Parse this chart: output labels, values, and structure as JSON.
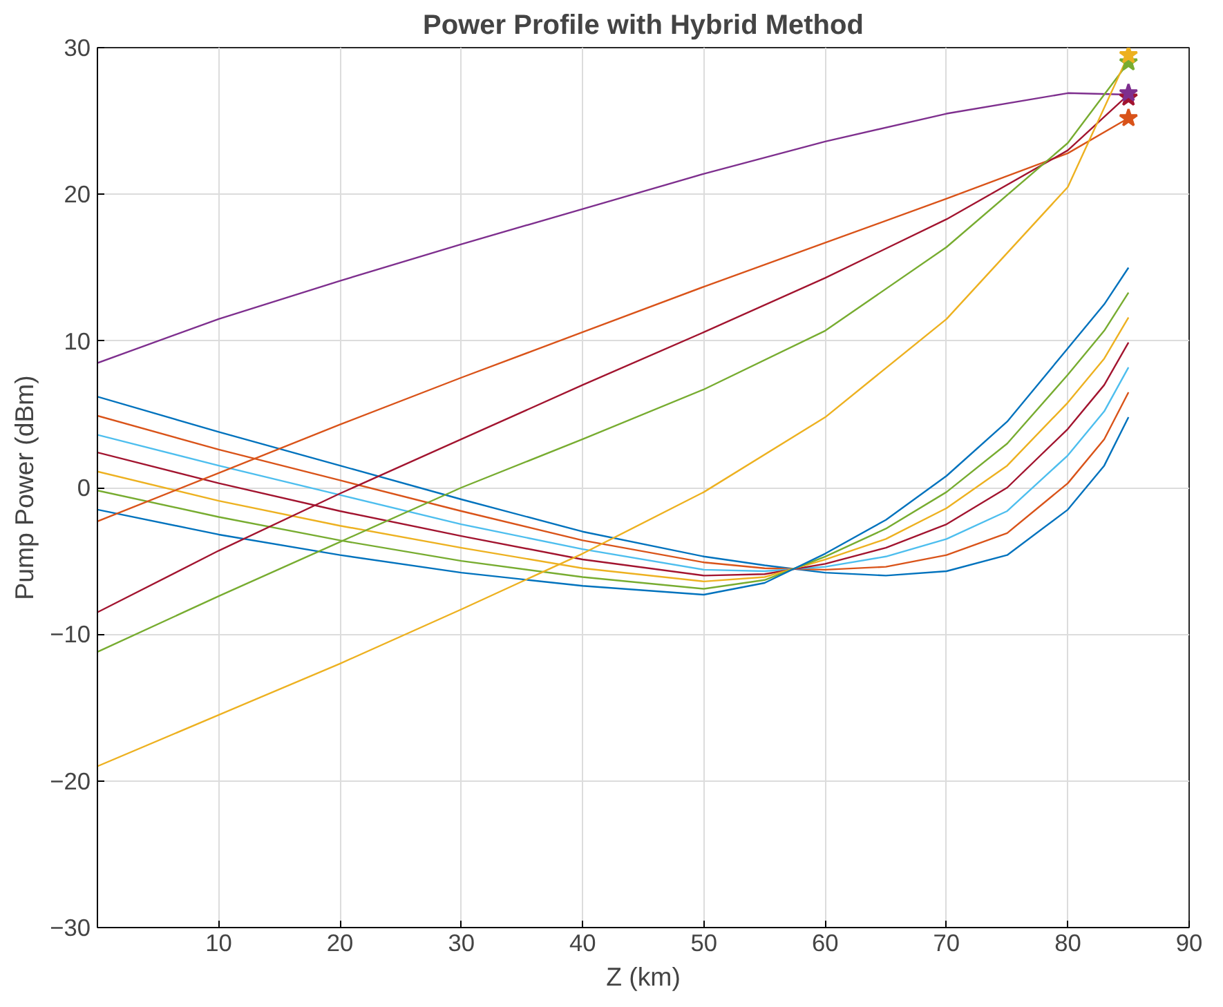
{
  "chart_data": {
    "type": "line",
    "title": "Power Profile with Hybrid Method",
    "xlabel": "Z (km)",
    "ylabel": "Pump Power (dBm)",
    "xlim": [
      0,
      90
    ],
    "xticks": [
      10,
      20,
      30,
      40,
      50,
      60,
      70,
      80,
      90
    ],
    "ylim": [
      -30,
      30
    ],
    "yticks": [
      -30,
      -20,
      -10,
      0,
      10,
      20,
      30
    ],
    "grid": true,
    "line_style": "solid",
    "x": [
      0,
      10,
      20,
      30,
      40,
      50,
      55,
      60,
      65,
      70,
      75,
      80,
      83,
      85
    ],
    "series": [
      {
        "color": "#0072bd",
        "values": [
          6.2,
          3.8,
          1.5,
          -0.8,
          -3,
          -4.7,
          -5.3,
          -5.8,
          -6,
          -5.7,
          -4.6,
          -1.5,
          1.5,
          4.8
        ]
      },
      {
        "color": "#d95319",
        "values": [
          4.9,
          2.6,
          0.5,
          -1.6,
          -3.6,
          -5.1,
          -5.5,
          -5.6,
          -5.4,
          -4.6,
          -3.1,
          0.3,
          3.3,
          6.5
        ]
      },
      {
        "color": "#4dbeee",
        "values": [
          3.6,
          1.5,
          -0.5,
          -2.5,
          -4.2,
          -5.6,
          -5.7,
          -5.4,
          -4.7,
          -3.5,
          -1.6,
          2.2,
          5.2,
          8.2
        ]
      },
      {
        "color": "#a2142f",
        "values": [
          2.4,
          0.3,
          -1.6,
          -3.3,
          -4.9,
          -6,
          -5.9,
          -5.2,
          -4.1,
          -2.5,
          0,
          4,
          7,
          9.9
        ]
      },
      {
        "color": "#edb120",
        "values": [
          1.1,
          -0.9,
          -2.6,
          -4.1,
          -5.5,
          -6.4,
          -6.1,
          -4.9,
          -3.5,
          -1.4,
          1.5,
          5.8,
          8.8,
          11.6
        ]
      },
      {
        "color": "#77ac30",
        "values": [
          -0.2,
          -2,
          -3.6,
          -5,
          -6.1,
          -6.9,
          -6.3,
          -4.7,
          -2.8,
          -0.3,
          3,
          7.7,
          10.7,
          13.3
        ]
      },
      {
        "color": "#0072bd",
        "values": [
          -1.5,
          -3.2,
          -4.6,
          -5.8,
          -6.7,
          -7.3,
          -6.5,
          -4.5,
          -2.2,
          0.8,
          4.5,
          9.5,
          12.5,
          15
        ]
      },
      {
        "color": "#7e2f8e",
        "x": [
          0,
          10,
          20,
          30,
          40,
          50,
          60,
          70,
          80,
          85
        ],
        "values": [
          8.5,
          11.5,
          14.1,
          16.6,
          19,
          21.4,
          23.6,
          25.5,
          26.9,
          26.8
        ]
      },
      {
        "color": "#d95319",
        "x": [
          0,
          10,
          20,
          30,
          40,
          50,
          60,
          70,
          80,
          85
        ],
        "values": [
          -2.3,
          1,
          4.3,
          7.5,
          10.6,
          13.7,
          16.7,
          19.7,
          22.8,
          25.2
        ]
      },
      {
        "color": "#a2142f",
        "x": [
          0,
          10,
          20,
          30,
          40,
          50,
          60,
          70,
          80,
          85
        ],
        "values": [
          -8.5,
          -4.3,
          -0.4,
          3.3,
          7,
          10.6,
          14.3,
          18.3,
          23,
          26.8
        ]
      },
      {
        "color": "#77ac30",
        "x": [
          0,
          10,
          20,
          30,
          40,
          50,
          60,
          70,
          80,
          85
        ],
        "values": [
          -11.2,
          -7.4,
          -3.7,
          0,
          3.3,
          6.7,
          10.7,
          16.4,
          23.5,
          29
        ]
      },
      {
        "color": "#edb120",
        "x": [
          0,
          10,
          20,
          30,
          40,
          50,
          60,
          70,
          80,
          85
        ],
        "values": [
          -19,
          -15.5,
          -12,
          -8.3,
          -4.5,
          -0.3,
          4.8,
          11.5,
          20.5,
          29.5
        ]
      },
      {
        "type": "scatter",
        "marker": "star",
        "x": [
          85,
          85,
          85,
          85,
          85
        ],
        "values": [
          26.6,
          25.2,
          26.9,
          29,
          29.5
        ],
        "colors": [
          "#a2142f",
          "#d95319",
          "#7e2f8e",
          "#77ac30",
          "#edb120"
        ]
      }
    ]
  }
}
